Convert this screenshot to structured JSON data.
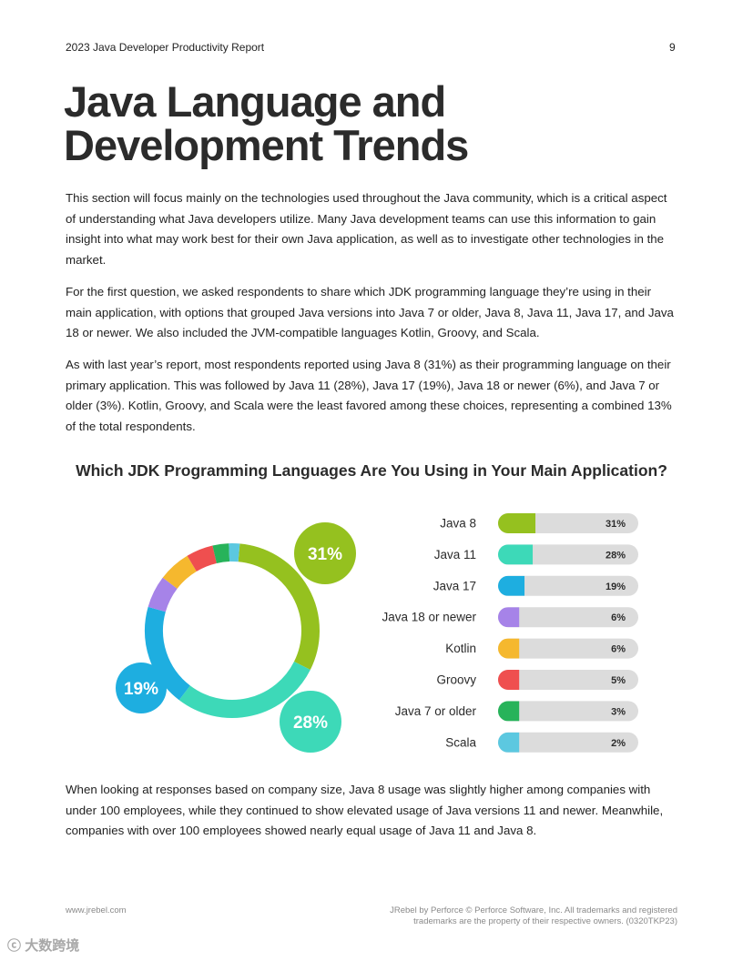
{
  "header": {
    "report_title": "2023 Java Developer Productivity Report",
    "page_number": "9"
  },
  "page_title": "Java Language and Development Trends",
  "paragraphs": [
    "This section will focus mainly on the technologies used throughout the Java community, which is a critical aspect of understanding what Java developers utilize. Many Java development teams can use this information to gain insight into what may work best for their own Java application, as well as to investigate other technologies in the market.",
    "For the first question, we asked respondents to share which JDK programming language they’re using in their main application, with options that grouped Java versions into Java 7 or older, Java 8, Java 11, Java 17, and Java 18 or newer. We also included the JVM-compatible languages Kotlin, Groovy, and Scala.",
    "As with last year’s report, most respondents reported using Java 8 (31%) as their programming language on their primary application. This was followed by Java 11 (28%), Java 17 (19%), Java 18 or newer (6%), and Java 7 or older (3%). Kotlin, Groovy, and Scala were the least favored among these choices, representing a combined 13% of the total respondents.",
    "When looking at responses based on company size, Java 8 usage was slightly higher among companies with under 100 employees, while they continued to show elevated usage of Java versions 11 and newer. Meanwhile, companies with over 100 employees showed nearly equal usage of Java 11 and Java 8."
  ],
  "chart_data": {
    "type": "pie",
    "title": "Which JDK Programming Languages Are You Using in Your Main Application?",
    "categories": [
      "Java 8",
      "Java 11",
      "Java 17",
      "Java 18 or newer",
      "Kotlin",
      "Groovy",
      "Java 7 or older",
      "Scala"
    ],
    "values": [
      31,
      28,
      19,
      6,
      6,
      5,
      3,
      2
    ],
    "value_labels": [
      "31%",
      "28%",
      "19%",
      "6%",
      "6%",
      "5%",
      "3%",
      "2%"
    ],
    "colors": [
      "#95c11f",
      "#3dd9b8",
      "#1eaee0",
      "#a683e8",
      "#f5b82e",
      "#ef4f4f",
      "#27b35a",
      "#5cc8e0"
    ],
    "track_color": "#dcdcdc",
    "callouts": [
      {
        "category": "Java 8",
        "label": "31%"
      },
      {
        "category": "Java 11",
        "label": "28%"
      },
      {
        "category": "Java 17",
        "label": "19%"
      }
    ]
  },
  "footer": {
    "website": "www.jrebel.com",
    "legal_line1": "JRebel by Perforce © Perforce Software, Inc. All trademarks and registered",
    "legal_line2": "trademarks are the property of their respective owners. (0320TKP23)"
  },
  "watermark": {
    "text": "大数跨境"
  }
}
